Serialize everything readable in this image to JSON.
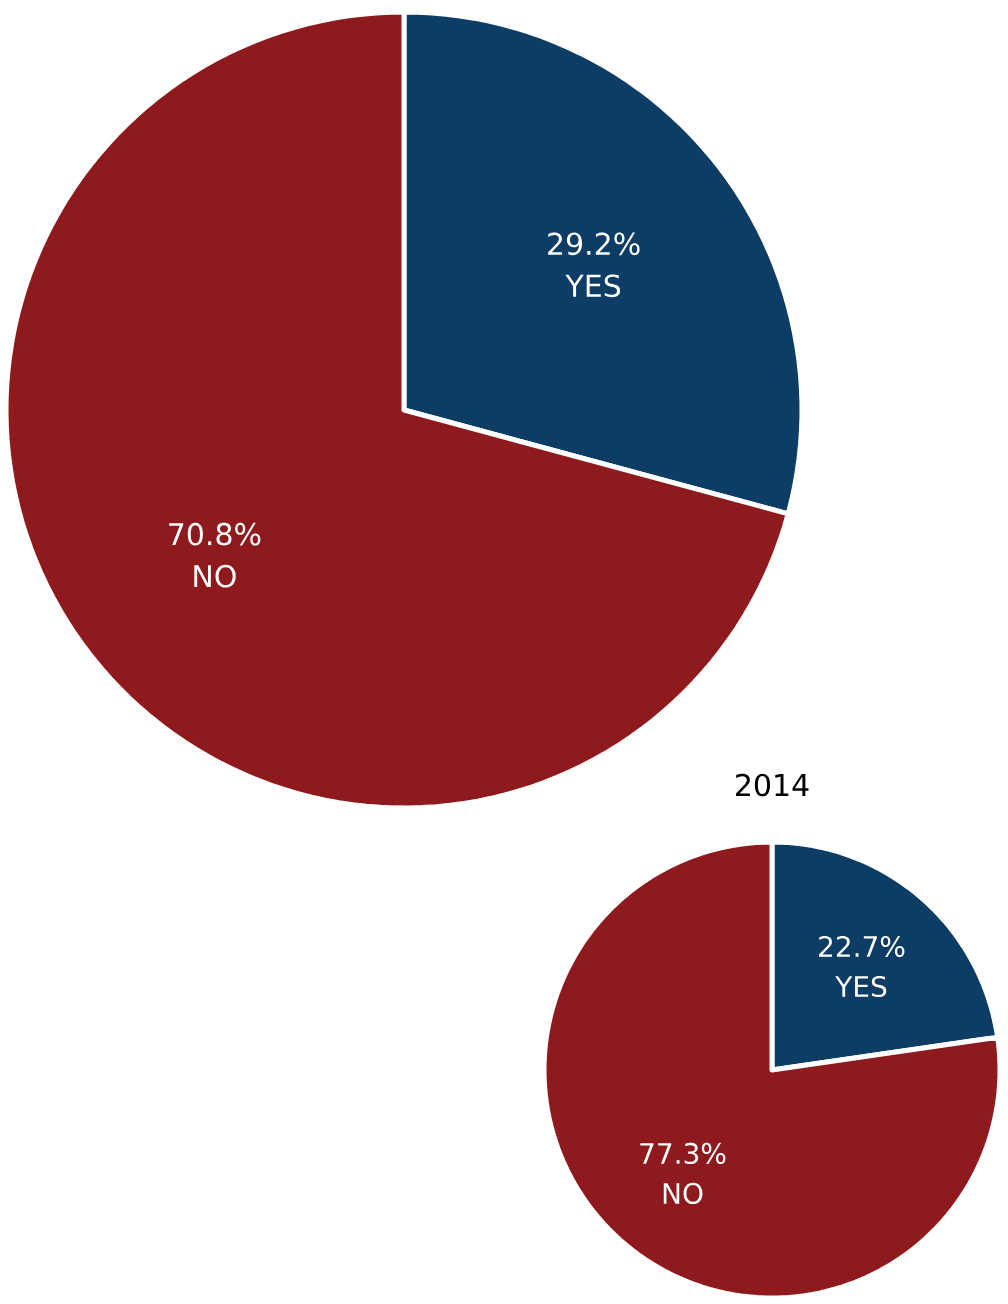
{
  "chart_data": [
    {
      "type": "pie",
      "categories": [
        "YES",
        "NO"
      ],
      "values": [
        29.2,
        70.8
      ],
      "value_labels": [
        "29.2%",
        "70.8%"
      ],
      "colors": [
        "#0d3c64",
        "#8f1a1d"
      ]
    },
    {
      "type": "pie",
      "title": "2014",
      "categories": [
        "YES",
        "NO"
      ],
      "values": [
        22.7,
        77.3
      ],
      "value_labels": [
        "22.7%",
        "77.3%"
      ],
      "colors": [
        "#0d3c64",
        "#8f1a1d"
      ]
    }
  ]
}
